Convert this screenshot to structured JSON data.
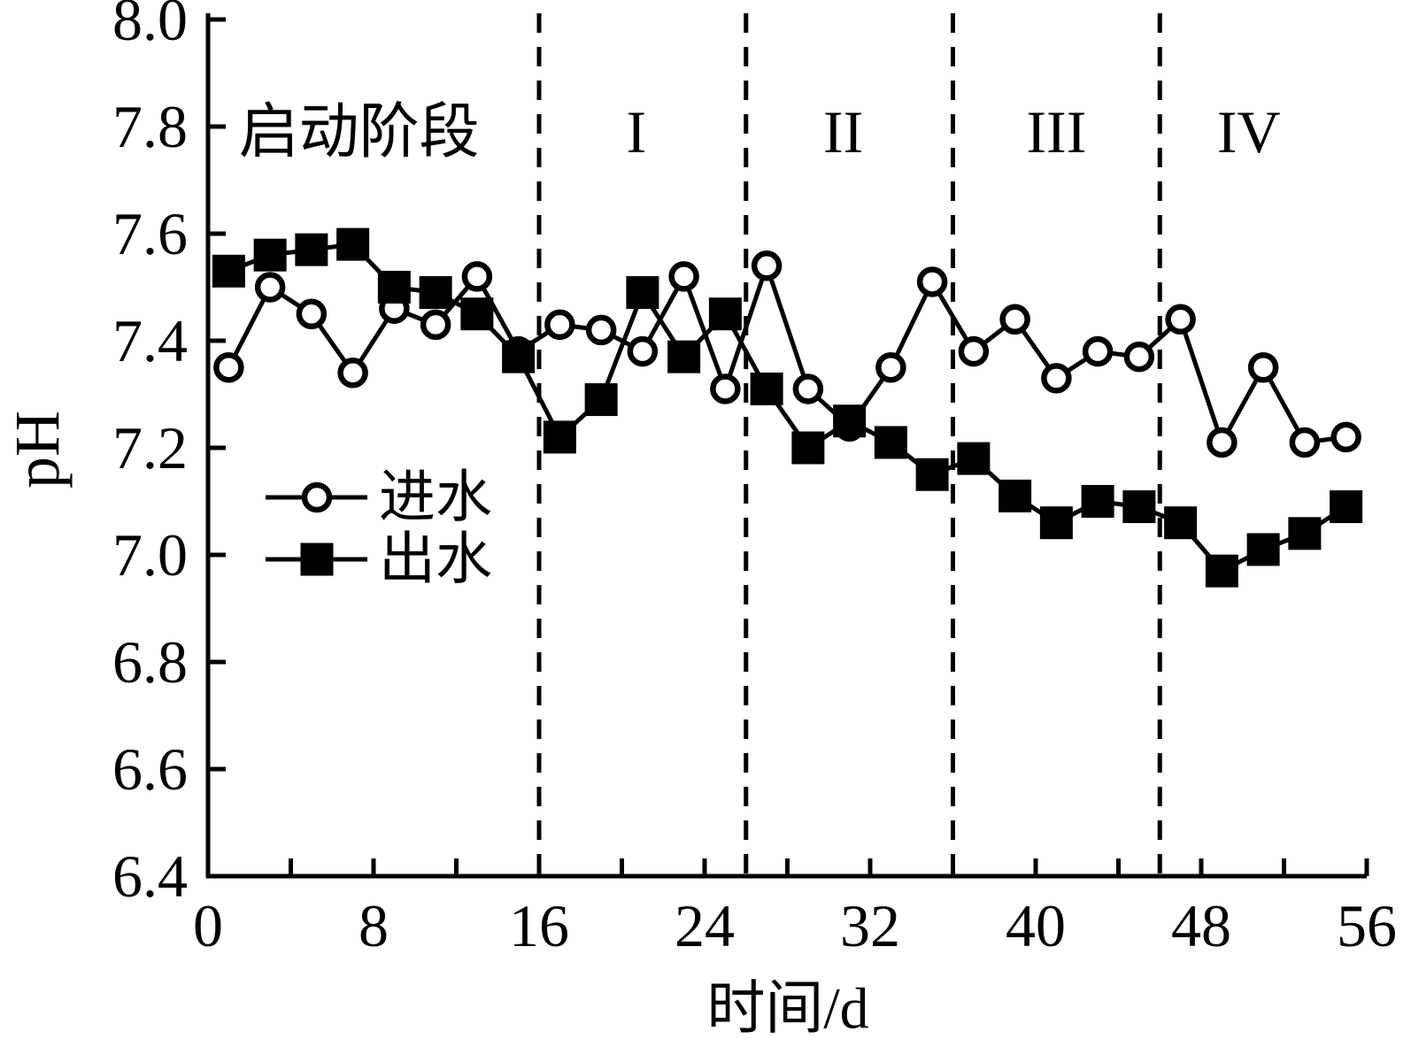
{
  "figure": {
    "background": "#ffffff",
    "foreground": "#000000"
  },
  "axis_titles": {
    "ylabel": "pH",
    "xlabel": "时间/d"
  },
  "legend": {
    "items": [
      {
        "label": "进水",
        "marker": "open-circle"
      },
      {
        "label": "出水",
        "marker": "filled-square"
      }
    ]
  },
  "chart_data": {
    "type": "line",
    "title": "",
    "xlabel": "时间/d",
    "ylabel": "pH",
    "xlim": [
      0,
      56
    ],
    "ylim": [
      6.4,
      8.0
    ],
    "grid": false,
    "x_major_ticks": [
      0,
      8,
      16,
      24,
      32,
      40,
      48,
      56
    ],
    "x_minor_tick_step": 4,
    "y_ticks": [
      6.4,
      6.6,
      6.8,
      7.0,
      7.2,
      7.4,
      7.6,
      7.8,
      8.0
    ],
    "phase_dividers_x": [
      16,
      26,
      36,
      46
    ],
    "phase_labels": [
      {
        "text": "启动阶段",
        "x_day": 7.3,
        "y_ph": 7.79
      },
      {
        "text": "I",
        "x_day": 20.7,
        "y_ph": 7.79
      },
      {
        "text": "II",
        "x_day": 30.7,
        "y_ph": 7.79
      },
      {
        "text": "III",
        "x_day": 41.0,
        "y_ph": 7.79
      },
      {
        "text": "IV",
        "x_day": 50.3,
        "y_ph": 7.79
      }
    ],
    "x": [
      1,
      3,
      5,
      7,
      9,
      11,
      13,
      15,
      17,
      19,
      21,
      23,
      25,
      27,
      29,
      31,
      33,
      35,
      37,
      39,
      41,
      43,
      45,
      47,
      49,
      51,
      53,
      55
    ],
    "series": [
      {
        "name": "进水",
        "marker": "open-circle",
        "color": "#000000",
        "values": [
          7.35,
          7.5,
          7.45,
          7.34,
          7.46,
          7.43,
          7.52,
          7.38,
          7.43,
          7.42,
          7.38,
          7.52,
          7.31,
          7.54,
          7.31,
          7.24,
          7.35,
          7.51,
          7.38,
          7.44,
          7.33,
          7.38,
          7.37,
          7.44,
          7.21,
          7.35,
          7.21,
          7.22
        ]
      },
      {
        "name": "出水",
        "marker": "filled-square",
        "color": "#000000",
        "values": [
          7.53,
          7.56,
          7.57,
          7.58,
          7.5,
          7.49,
          7.45,
          7.37,
          7.22,
          7.29,
          7.49,
          7.37,
          7.45,
          7.31,
          7.2,
          7.25,
          7.21,
          7.15,
          7.18,
          7.11,
          7.06,
          7.1,
          7.09,
          7.06,
          6.97,
          7.01,
          7.04,
          7.09
        ]
      }
    ],
    "legend_position": "inside-left-middle"
  }
}
